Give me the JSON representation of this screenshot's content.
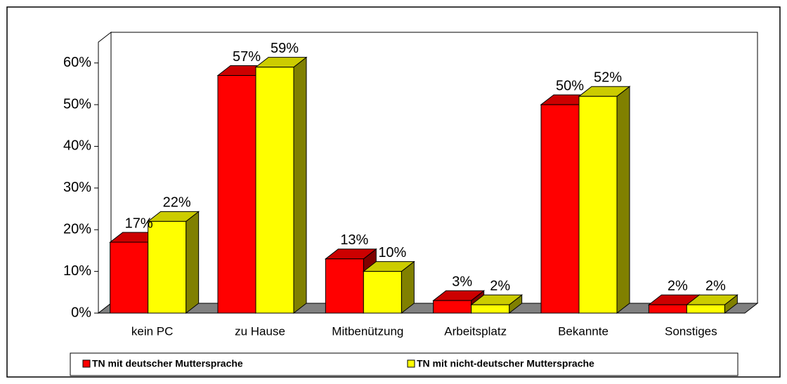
{
  "chart_data": {
    "type": "bar3d",
    "categories": [
      "kein PC",
      "zu Hause",
      "Mitbenützung",
      "Arbeitsplatz",
      "Bekannte",
      "Sonstiges"
    ],
    "series": [
      {
        "name": "TN mit deutscher Muttersprache",
        "color": "#ff0000",
        "values": [
          17,
          57,
          13,
          3,
          50,
          2
        ],
        "value_labels": [
          "17%",
          "57%",
          "13%",
          "3%",
          "50%",
          "2%"
        ]
      },
      {
        "name": "TN mit nicht-deutscher Muttersprache",
        "color": "#ffff00",
        "values": [
          22,
          59,
          10,
          2,
          52,
          2
        ],
        "value_labels": [
          "22%",
          "59%",
          "10%",
          "2%",
          "52%",
          "2%"
        ]
      }
    ],
    "ylim": [
      0,
      65
    ],
    "yticks": [
      {
        "value": 0,
        "label": "0%"
      },
      {
        "value": 10,
        "label": "10%"
      },
      {
        "value": 20,
        "label": "20%"
      },
      {
        "value": 30,
        "label": "30%"
      },
      {
        "value": 40,
        "label": "40%"
      },
      {
        "value": 50,
        "label": "50%"
      },
      {
        "value": 60,
        "label": "60%"
      }
    ],
    "legend": "bottom"
  }
}
